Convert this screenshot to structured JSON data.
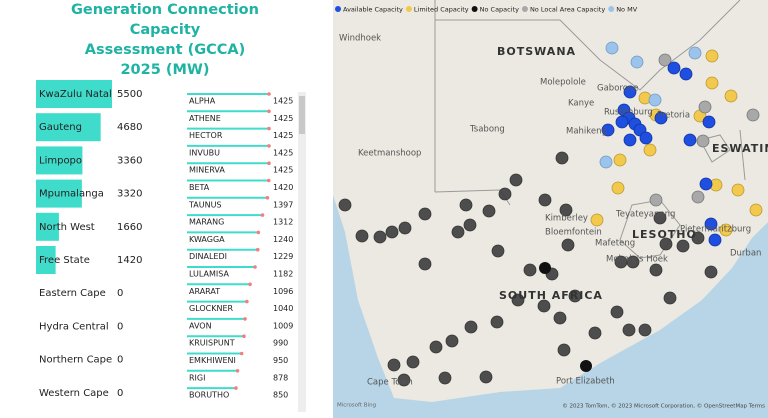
{
  "title": [
    "Generation Connection Capacity",
    "Assessment (GCCA)",
    "2025 (MW)"
  ],
  "chart_data": [
    {
      "type": "hbar",
      "color": "#40dccb",
      "categories": [
        "KwaZulu Natal",
        "Gauteng",
        "Limpopo",
        "Mpumalanga",
        "North West",
        "Free State",
        "Eastern Cape",
        "Hydra Central",
        "Northern Cape",
        "Western Cape"
      ],
      "values": [
        5500,
        4680,
        3360,
        3320,
        1660,
        1420,
        0,
        0,
        0,
        0
      ]
    },
    {
      "type": "lollipop",
      "color": "#40dccb",
      "dot_color": "#f08080",
      "categories": [
        "ALPHA",
        "ATHENE",
        "HECTOR",
        "INVUBU",
        "MINERVA",
        "BETA",
        "TAUNUS",
        "MARANG",
        "KWAGGA",
        "DINALEDI",
        "LULAMISA",
        "ARARAT",
        "GLOCKNER",
        "AVON",
        "KRUISPUNT",
        "EMKHIWENI",
        "RIGI",
        "BORUTHO"
      ],
      "values": [
        1425,
        1425,
        1425,
        1425,
        1425,
        1420,
        1397,
        1312,
        1240,
        1229,
        1182,
        1096,
        1040,
        1009,
        990,
        950,
        878,
        850
      ]
    }
  ],
  "map": {
    "legend": [
      {
        "name": "Available Capacity",
        "color": "#1f4fe0"
      },
      {
        "name": "Limited Capacity",
        "color": "#f2c94c"
      },
      {
        "name": "No Capacity",
        "color": "#111111"
      },
      {
        "name": "No Local Area Capacity",
        "color": "#a8a8a8"
      },
      {
        "name": "No MV",
        "color": "#9cc3ea"
      }
    ],
    "labels": [
      "Windhoek",
      "BOTSWANA",
      "Molepolole",
      "Gaborone",
      "Kanye",
      "Rustenburg",
      "Pretoria",
      "Mahikeng",
      "Tsabong",
      "Keetmanshoop",
      "ESWATINI",
      "Kimberley",
      "Bloemfontein",
      "Mafeteng",
      "LESOTHO",
      "Durban",
      "Mohale's Hoek",
      "SOUTH AFRICA",
      "Cape Town",
      "Port Elizabeth",
      "Teyateyaneng",
      "Pietermaritzburg"
    ],
    "brand": "Microsoft Bing",
    "attribution": "© 2023 TomTom, © 2023 Microsoft Corporation, © OpenStreetMap Terms"
  }
}
